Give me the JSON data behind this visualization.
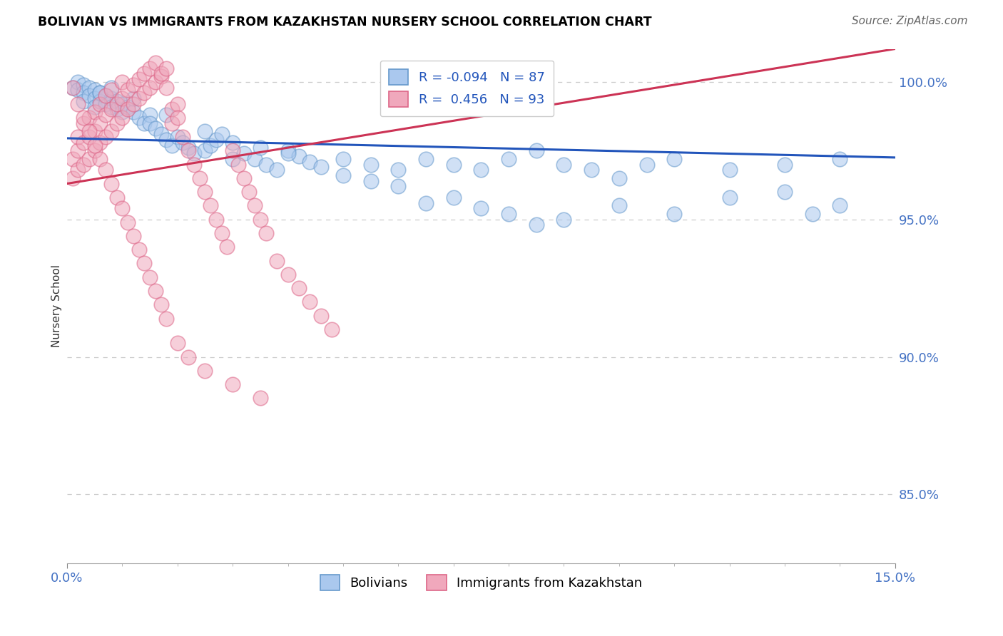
{
  "title": "BOLIVIAN VS IMMIGRANTS FROM KAZAKHSTAN NURSERY SCHOOL CORRELATION CHART",
  "source": "Source: ZipAtlas.com",
  "ylabel": "Nursery School",
  "xlim": [
    0.0,
    0.15
  ],
  "ylim": [
    0.825,
    1.012
  ],
  "yticks": [
    0.85,
    0.9,
    0.95,
    1.0
  ],
  "ytick_labels": [
    "85.0%",
    "90.0%",
    "95.0%",
    "100.0%"
  ],
  "xticks": [
    0.0,
    0.15
  ],
  "xtick_labels": [
    "0.0%",
    "15.0%"
  ],
  "blue_R": -0.094,
  "blue_N": 87,
  "pink_R": 0.456,
  "pink_N": 93,
  "blue_color": "#aac8ee",
  "pink_color": "#f0a8bc",
  "blue_edge_color": "#6699cc",
  "pink_edge_color": "#dd6688",
  "blue_line_color": "#2255bb",
  "pink_line_color": "#cc3355",
  "legend_label_blue": "Bolivians",
  "legend_label_pink": "Immigrants from Kazakhstan",
  "blue_scatter_x": [
    0.001,
    0.002,
    0.002,
    0.003,
    0.003,
    0.003,
    0.004,
    0.004,
    0.005,
    0.005,
    0.005,
    0.006,
    0.006,
    0.007,
    0.007,
    0.008,
    0.008,
    0.009,
    0.009,
    0.01,
    0.01,
    0.011,
    0.012,
    0.013,
    0.014,
    0.015,
    0.015,
    0.016,
    0.017,
    0.018,
    0.019,
    0.02,
    0.021,
    0.022,
    0.023,
    0.025,
    0.026,
    0.027,
    0.028,
    0.03,
    0.032,
    0.034,
    0.036,
    0.038,
    0.04,
    0.042,
    0.044,
    0.046,
    0.05,
    0.055,
    0.06,
    0.065,
    0.07,
    0.075,
    0.08,
    0.085,
    0.09,
    0.095,
    0.1,
    0.105,
    0.11,
    0.12,
    0.13,
    0.14,
    0.03,
    0.035,
    0.04,
    0.05,
    0.055,
    0.06,
    0.065,
    0.07,
    0.075,
    0.08,
    0.085,
    0.09,
    0.1,
    0.11,
    0.12,
    0.13,
    0.135,
    0.14,
    0.006,
    0.008,
    0.012,
    0.018,
    0.025
  ],
  "blue_scatter_y": [
    0.998,
    1.0,
    0.997,
    0.999,
    0.996,
    0.993,
    0.998,
    0.995,
    0.997,
    0.994,
    0.991,
    0.996,
    0.993,
    0.995,
    0.992,
    0.994,
    0.991,
    0.993,
    0.99,
    0.992,
    0.989,
    0.991,
    0.989,
    0.987,
    0.985,
    0.988,
    0.985,
    0.983,
    0.981,
    0.979,
    0.977,
    0.98,
    0.978,
    0.976,
    0.974,
    0.975,
    0.977,
    0.979,
    0.981,
    0.972,
    0.974,
    0.972,
    0.97,
    0.968,
    0.975,
    0.973,
    0.971,
    0.969,
    0.972,
    0.97,
    0.968,
    0.972,
    0.97,
    0.968,
    0.972,
    0.975,
    0.97,
    0.968,
    0.965,
    0.97,
    0.972,
    0.968,
    0.97,
    0.972,
    0.978,
    0.976,
    0.974,
    0.966,
    0.964,
    0.962,
    0.956,
    0.958,
    0.954,
    0.952,
    0.948,
    0.95,
    0.955,
    0.952,
    0.958,
    0.96,
    0.952,
    0.955,
    0.996,
    0.998,
    0.994,
    0.988,
    0.982
  ],
  "pink_scatter_x": [
    0.001,
    0.001,
    0.002,
    0.002,
    0.002,
    0.003,
    0.003,
    0.003,
    0.004,
    0.004,
    0.004,
    0.005,
    0.005,
    0.005,
    0.006,
    0.006,
    0.006,
    0.007,
    0.007,
    0.007,
    0.008,
    0.008,
    0.008,
    0.009,
    0.009,
    0.01,
    0.01,
    0.01,
    0.011,
    0.011,
    0.012,
    0.012,
    0.013,
    0.013,
    0.014,
    0.014,
    0.015,
    0.015,
    0.016,
    0.016,
    0.017,
    0.017,
    0.018,
    0.018,
    0.019,
    0.019,
    0.02,
    0.02,
    0.021,
    0.022,
    0.023,
    0.024,
    0.025,
    0.026,
    0.027,
    0.028,
    0.029,
    0.03,
    0.031,
    0.032,
    0.033,
    0.034,
    0.035,
    0.036,
    0.038,
    0.04,
    0.042,
    0.044,
    0.046,
    0.048,
    0.001,
    0.002,
    0.003,
    0.004,
    0.005,
    0.006,
    0.007,
    0.008,
    0.009,
    0.01,
    0.011,
    0.012,
    0.013,
    0.014,
    0.015,
    0.016,
    0.017,
    0.018,
    0.02,
    0.022,
    0.025,
    0.03,
    0.035
  ],
  "pink_scatter_y": [
    0.965,
    0.972,
    0.968,
    0.975,
    0.98,
    0.97,
    0.978,
    0.985,
    0.972,
    0.98,
    0.987,
    0.975,
    0.982,
    0.989,
    0.978,
    0.985,
    0.992,
    0.98,
    0.988,
    0.995,
    0.982,
    0.99,
    0.997,
    0.985,
    0.992,
    0.987,
    0.994,
    1.0,
    0.99,
    0.997,
    0.992,
    0.999,
    0.994,
    1.001,
    0.996,
    1.003,
    0.998,
    1.005,
    1.0,
    1.007,
    1.002,
    1.003,
    1.005,
    0.998,
    0.99,
    0.985,
    0.992,
    0.987,
    0.98,
    0.975,
    0.97,
    0.965,
    0.96,
    0.955,
    0.95,
    0.945,
    0.94,
    0.975,
    0.97,
    0.965,
    0.96,
    0.955,
    0.95,
    0.945,
    0.935,
    0.93,
    0.925,
    0.92,
    0.915,
    0.91,
    0.998,
    0.992,
    0.987,
    0.982,
    0.977,
    0.972,
    0.968,
    0.963,
    0.958,
    0.954,
    0.949,
    0.944,
    0.939,
    0.934,
    0.929,
    0.924,
    0.919,
    0.914,
    0.905,
    0.9,
    0.895,
    0.89,
    0.885
  ]
}
